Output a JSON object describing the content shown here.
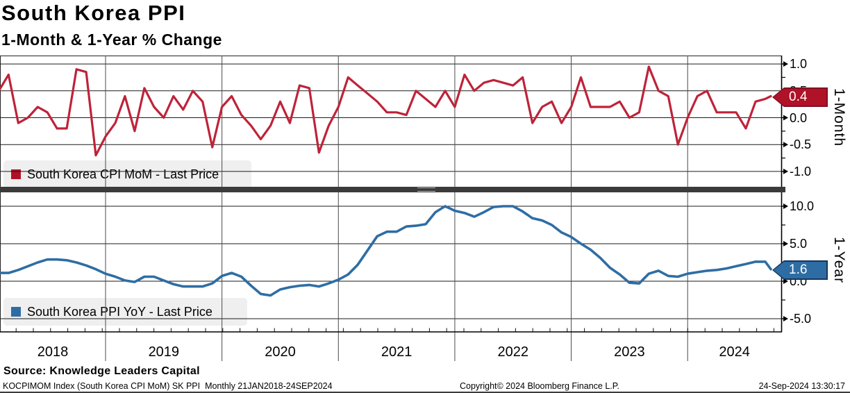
{
  "header": {
    "title": "South Korea PPI",
    "subtitle": "1-Month & 1-Year % Change"
  },
  "chart_data": [
    {
      "type": "line",
      "panel": "top",
      "legend": "South Korea CPI MoM - Last Price",
      "axis_label": "1-Month",
      "color": "#be2339",
      "badge_color": "#b01228",
      "last_price_badge": "0.4",
      "x_start": "2018-01",
      "x_end": "2024-09",
      "frequency": "monthly",
      "ylim": [
        -1.3,
        1.15
      ],
      "yticks": [
        "1.0",
        "0.5",
        "0.0",
        "-0.5",
        "-1.0"
      ],
      "ytick_values": [
        1.0,
        0.5,
        0.0,
        -0.5,
        -1.0
      ],
      "minor_tick_values": [
        0.75,
        0.25,
        -0.25,
        -0.75
      ],
      "values": [
        0.5,
        0.8,
        -0.1,
        0.0,
        0.2,
        0.1,
        -0.2,
        -0.2,
        0.9,
        0.85,
        -0.7,
        -0.35,
        -0.1,
        0.4,
        -0.25,
        0.55,
        0.2,
        0.0,
        0.4,
        0.15,
        0.5,
        0.3,
        -0.55,
        0.2,
        0.4,
        0.05,
        -0.15,
        -0.4,
        -0.15,
        0.3,
        -0.1,
        0.6,
        0.55,
        -0.65,
        -0.15,
        0.2,
        0.75,
        0.6,
        0.45,
        0.3,
        0.1,
        0.1,
        0.05,
        0.5,
        0.35,
        0.2,
        0.5,
        0.2,
        0.8,
        0.5,
        0.65,
        0.7,
        0.65,
        0.6,
        0.75,
        -0.1,
        0.2,
        0.3,
        -0.1,
        0.2,
        0.75,
        0.2,
        0.2,
        0.2,
        0.3,
        0.0,
        0.1,
        0.95,
        0.5,
        0.4,
        -0.5,
        0.0,
        0.4,
        0.5,
        0.1,
        0.1,
        0.1,
        -0.2,
        0.3,
        0.35,
        0.4
      ]
    },
    {
      "type": "line",
      "panel": "bottom",
      "legend": "South Korea PPI YoY - Last Price",
      "axis_label": "1-Year",
      "color": "#2e6da4",
      "badge_color": "#2e6da4",
      "last_price_badge": "1.6",
      "x_start": "2018-01",
      "x_end": "2024-09",
      "frequency": "monthly",
      "ylim": [
        -6.5,
        11.7
      ],
      "yticks": [
        "10.0",
        "5.0",
        "0.0",
        "-5.0"
      ],
      "ytick_values": [
        10.0,
        5.0,
        0.0,
        -5.0
      ],
      "minor_tick_values": [
        7.5,
        2.5,
        -2.5
      ],
      "values": [
        1.1,
        1.1,
        1.5,
        2.0,
        2.5,
        2.9,
        2.9,
        2.8,
        2.5,
        2.1,
        1.6,
        1.0,
        0.6,
        0.1,
        -0.1,
        0.6,
        0.6,
        0.1,
        -0.4,
        -0.7,
        -0.7,
        -0.7,
        -0.3,
        0.7,
        1.1,
        0.6,
        -0.6,
        -1.7,
        -1.9,
        -1.1,
        -0.8,
        -0.6,
        -0.5,
        -0.7,
        -0.3,
        0.2,
        0.9,
        2.2,
        4.1,
        6.0,
        6.6,
        6.6,
        7.3,
        7.4,
        7.6,
        9.2,
        10.0,
        9.4,
        9.1,
        8.6,
        9.2,
        9.9,
        10.0,
        10.0,
        9.3,
        8.4,
        8.1,
        7.5,
        6.5,
        5.9,
        5.0,
        4.2,
        3.1,
        1.8,
        0.9,
        -0.2,
        -0.3,
        1.0,
        1.4,
        0.7,
        0.6,
        1.0,
        1.2,
        1.4,
        1.5,
        1.7,
        2.0,
        2.3,
        2.6,
        2.6,
        1.6
      ]
    }
  ],
  "x_axis": {
    "year_labels": [
      "2018",
      "2019",
      "2020",
      "2021",
      "2022",
      "2023",
      "2024"
    ]
  },
  "source_line": "Source: Knowledge Leaders Capital",
  "footer": {
    "left": "KOCPIMOM Index (South Korea CPI MoM) SK PPI  Monthly 21JAN2018-24SEP2024",
    "center": "Copyright© 2024 Bloomberg Finance L.P.",
    "right": "24-Sep-2024 13:30:17"
  }
}
